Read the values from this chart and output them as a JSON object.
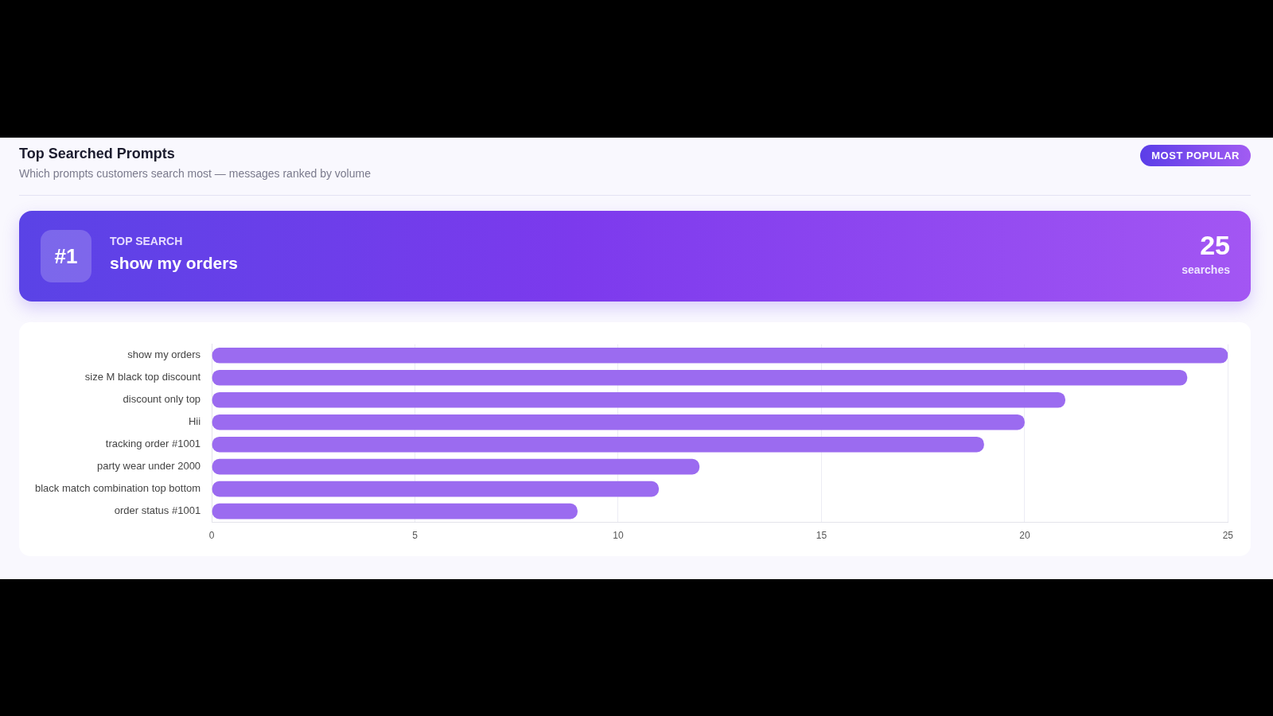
{
  "chart_data": {
    "type": "bar",
    "orientation": "horizontal",
    "title": "Top Searched Prompts",
    "subtitle": "Which prompts customers search most — messages ranked by volume",
    "annotations": [
      "MOST POPULAR",
      "#1",
      "TOP SEARCH",
      "show my orders",
      "25",
      "searches"
    ],
    "categories": [
      "show my orders",
      "size M black top discount",
      "discount only top",
      "Hii",
      "tracking order #1001",
      "party wear under 2000",
      "black match combination top bottom",
      "order status #1001"
    ],
    "values": [
      25,
      24,
      21,
      20,
      19,
      12,
      11,
      9
    ],
    "color": "#9b6bf0",
    "xlim": [
      0,
      25
    ],
    "xticks": [
      0,
      5,
      10,
      15,
      20,
      25
    ],
    "grid": "x",
    "legend": false
  }
}
